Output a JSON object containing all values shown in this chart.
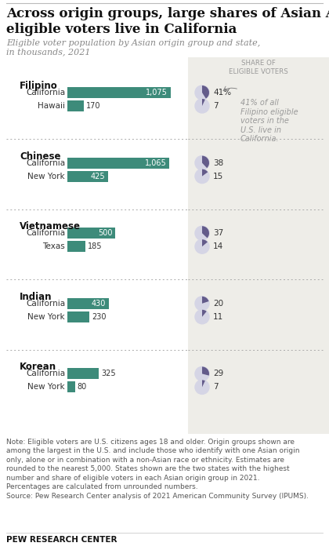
{
  "title": "Across origin groups, large shares of Asian American\neligible voters live in California",
  "subtitle": "Eligible voter population by Asian origin group and state,\nin thousands, 2021",
  "groups": [
    {
      "name": "Filipino",
      "rows": [
        {
          "state": "California",
          "value": 1075,
          "pct": 41,
          "pct_label": "41%"
        },
        {
          "state": "Hawaii",
          "value": 170,
          "pct": 7,
          "pct_label": "7"
        }
      ]
    },
    {
      "name": "Chinese",
      "rows": [
        {
          "state": "California",
          "value": 1065,
          "pct": 38,
          "pct_label": "38"
        },
        {
          "state": "New York",
          "value": 425,
          "pct": 15,
          "pct_label": "15"
        }
      ]
    },
    {
      "name": "Vietnamese",
      "rows": [
        {
          "state": "California",
          "value": 500,
          "pct": 37,
          "pct_label": "37"
        },
        {
          "state": "Texas",
          "value": 185,
          "pct": 14,
          "pct_label": "14"
        }
      ]
    },
    {
      "name": "Indian",
      "rows": [
        {
          "state": "California",
          "value": 430,
          "pct": 20,
          "pct_label": "20"
        },
        {
          "state": "New York",
          "value": 230,
          "pct": 11,
          "pct_label": "11"
        }
      ]
    },
    {
      "name": "Korean",
      "rows": [
        {
          "state": "California",
          "value": 325,
          "pct": 29,
          "pct_label": "29"
        },
        {
          "state": "New York",
          "value": 80,
          "pct": 7,
          "pct_label": "7"
        }
      ]
    }
  ],
  "bar_color": "#3d8b7a",
  "pie_ca_color": "#635b8a",
  "pie_other_color": "#d5d5e5",
  "share_col_bg": "#eeede8",
  "max_value": 1200,
  "annotation": "41% of all\nFilipino eligible\nvoters in the\nU.S. live in\nCalifornia.",
  "note1": "Note: Eligible voters are U.S. citizens ages 18 and older. Origin groups shown are",
  "note2": "among the largest in the U.S. and include those who identify with one Asian origin",
  "note3": "only, alone or in combination with a non-Asian race or ethnicity. Estimates are",
  "note4": "rounded to the nearest 5,000. States shown are the two states with the highest",
  "note5": "number and share of eligible voters in each Asian origin group in 2021.",
  "note6": "Percentages are calculated from unrounded numbers.",
  "note7": "Source: Pew Research Center analysis of 2021 American Community Survey (IPUMS).",
  "footer": "PEW RESEARCH CENTER"
}
